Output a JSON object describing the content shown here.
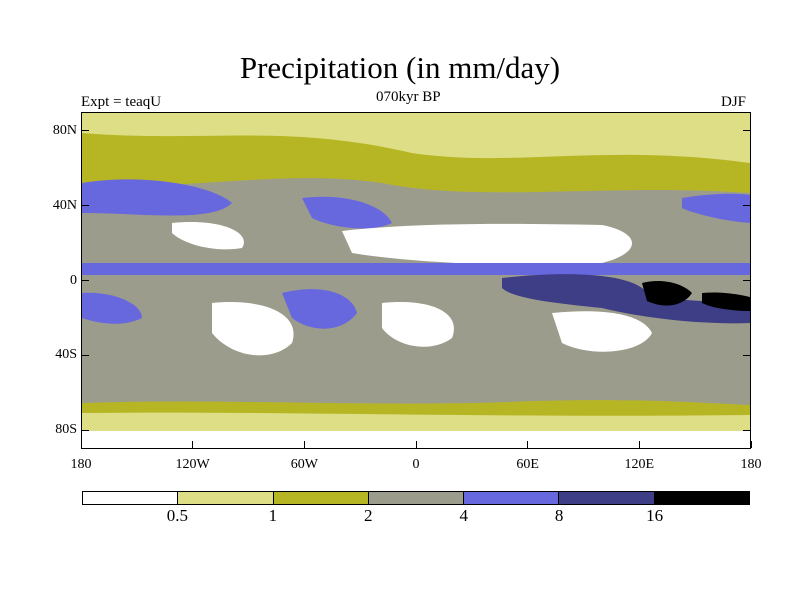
{
  "title": "Precipitation (in mm/day)",
  "subtitle_left": "Expt = teaqU",
  "subtitle_center": "070kyr BP",
  "subtitle_right": "DJF",
  "axes": {
    "y_ticks": [
      "80N",
      "40N",
      "0",
      "40S",
      "80S"
    ],
    "x_ticks": [
      "180",
      "120W",
      "60W",
      "0",
      "60E",
      "120E",
      "180"
    ],
    "lat_values": [
      80,
      40,
      0,
      -40,
      -80
    ],
    "lon_values": [
      -180,
      -120,
      -60,
      0,
      60,
      120,
      180
    ],
    "lat_range": [
      -90,
      90
    ],
    "lon_range": [
      -180,
      180
    ]
  },
  "colorbar": {
    "levels": [
      "0.5",
      "1",
      "2",
      "4",
      "8",
      "16"
    ],
    "colors": [
      "#ffffff",
      "#dede86",
      "#b6b624",
      "#9c9c8c",
      "#6868de",
      "#3e3e86",
      "#000000"
    ]
  }
}
